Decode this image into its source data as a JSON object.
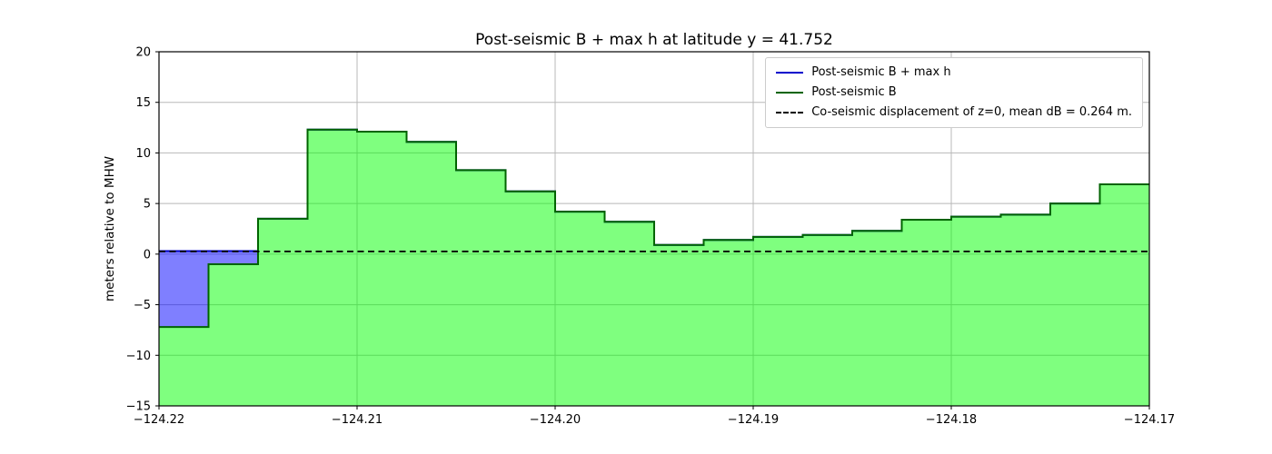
{
  "chart_data": {
    "type": "area",
    "title": "Post-seismic B + max h at latitude y = 41.752",
    "xlabel": "",
    "ylabel": "meters relative to MHW",
    "xlim": [
      -124.22,
      -124.17
    ],
    "ylim": [
      -15,
      20
    ],
    "grid": true,
    "legend_position": "upper right",
    "xticks": [
      {
        "value": -124.22,
        "label": "−124.22"
      },
      {
        "value": -124.21,
        "label": "−124.21"
      },
      {
        "value": -124.2,
        "label": "−124.20"
      },
      {
        "value": -124.19,
        "label": "−124.19"
      },
      {
        "value": -124.18,
        "label": "−124.18"
      },
      {
        "value": -124.17,
        "label": "−124.17"
      }
    ],
    "yticks": [
      {
        "value": -15,
        "label": "−15"
      },
      {
        "value": -10,
        "label": "−10"
      },
      {
        "value": -5,
        "label": "−5"
      },
      {
        "value": 0,
        "label": "0"
      },
      {
        "value": 5,
        "label": "5"
      },
      {
        "value": 10,
        "label": "10"
      },
      {
        "value": 15,
        "label": "15"
      },
      {
        "value": 20,
        "label": "20"
      }
    ],
    "step_width_deg": 0.0025,
    "series": [
      {
        "name": "Post-seismic B + max h",
        "line_color": "#0000cc",
        "fill_color": "#0000ff",
        "fill_opacity": 0.5,
        "values": [
          0.3,
          0.3,
          3.5,
          12.3,
          12.1,
          11.1,
          8.3,
          6.2,
          4.2,
          3.2,
          0.9,
          1.4,
          1.7,
          1.9,
          2.3,
          3.4,
          3.7,
          3.9,
          5.0,
          6.9
        ]
      },
      {
        "name": "Post-seismic B",
        "line_color": "#006400",
        "fill_color": "#00ff00",
        "fill_opacity": 0.5,
        "values": [
          -7.2,
          -1.0,
          3.5,
          12.3,
          12.1,
          11.1,
          8.3,
          6.2,
          4.2,
          3.2,
          0.9,
          1.4,
          1.7,
          1.9,
          2.3,
          3.4,
          3.7,
          3.9,
          5.0,
          6.9
        ]
      }
    ],
    "dashed_line": {
      "label": "Co-seismic displacement of z=0, mean dB = 0.264 m.",
      "value": 0.264,
      "color": "#000000"
    },
    "legend": {
      "items": [
        {
          "label": "Post-seismic B + max h",
          "color": "#0000cc",
          "style": "solid"
        },
        {
          "label": "Post-seismic B",
          "color": "#006400",
          "style": "solid"
        },
        {
          "label": "Co-seismic displacement of z=0, mean dB = 0.264 m.",
          "color": "#000000",
          "style": "dashed"
        }
      ]
    },
    "colors": {
      "grid": "#b8b8b8",
      "axis": "#000000"
    }
  }
}
